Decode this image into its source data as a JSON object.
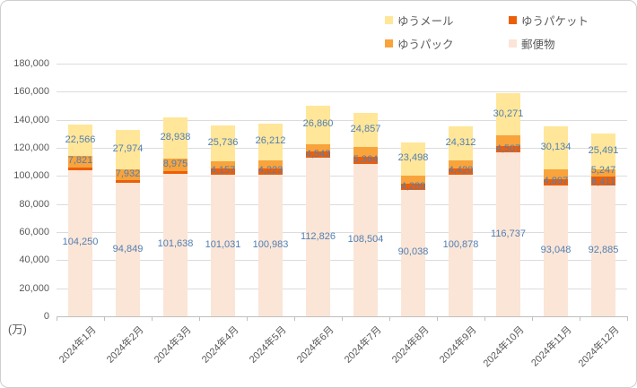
{
  "chart": {
    "unit_label": "(万)",
    "colors": {
      "yuu_mail": "#FFE699",
      "yuu_packet": "#EC5F0A",
      "yuu_pack": "#F8A33B",
      "yuubin": "#FBE5D6",
      "data_label_text": "#527FB3",
      "axis_text": "#595959",
      "gridline": "#DCDCDC",
      "axis_line": "#C0BFBF"
    },
    "legend": [
      {
        "label": "ゆうメール",
        "color_key": "yuu_mail"
      },
      {
        "label": "ゆうパケット",
        "color_key": "yuu_packet"
      },
      {
        "label": "ゆうパック",
        "color_key": "yuu_pack"
      },
      {
        "label": "郵便物",
        "color_key": "yuubin"
      }
    ],
    "chart_data": {
      "type": "bar",
      "stacked": true,
      "title": "",
      "xlabel": "",
      "ylabel": "(万)",
      "ylim": [
        0,
        180000
      ],
      "ytick_step": 20000,
      "grid": true,
      "legend_position": "top-right",
      "y_tick_labels": [
        "0",
        "20,000",
        "40,000",
        "60,000",
        "80,000",
        "100,000",
        "120,000",
        "140,000",
        "160,000",
        "180,000"
      ],
      "categories": [
        "2024年1月",
        "2024年2月",
        "2024年3月",
        "2024年4月",
        "2024年5月",
        "2024年6月",
        "2024年7月",
        "2024年8月",
        "2024年9月",
        "2024年10月",
        "2024年11月",
        "2024年12月"
      ],
      "note": "Series listed bottom-to-top of the stack. Values with labeled=false have no printed data label in the chart; those values are estimated from bar pixel heights against the gridlines.",
      "series": [
        {
          "name": "郵便物",
          "color_key": "yuubin",
          "values": [
            104250,
            94849,
            101638,
            101031,
            100983,
            112826,
            108504,
            90038,
            100878,
            116737,
            93048,
            92885
          ],
          "labeled": [
            true,
            true,
            true,
            true,
            true,
            true,
            true,
            true,
            true,
            true,
            true,
            true
          ]
        },
        {
          "name": "ゆうパケット",
          "color_key": "yuu_packet",
          "values": [
            2000,
            2000,
            2000,
            4157,
            4223,
            4543,
            5364,
            4289,
            4420,
            4507,
            4897,
            6411
          ],
          "labeled": [
            false,
            false,
            false,
            true,
            true,
            true,
            true,
            true,
            true,
            true,
            true,
            true
          ]
        },
        {
          "name": "ゆうパック",
          "color_key": "yuu_pack",
          "values": [
            7821,
            7932,
            8975,
            5000,
            6000,
            5500,
            6500,
            6000,
            5500,
            7500,
            7000,
            5247
          ],
          "labeled": [
            true,
            true,
            true,
            false,
            false,
            false,
            false,
            false,
            false,
            false,
            false,
            true
          ]
        },
        {
          "name": "ゆうメール",
          "color_key": "yuu_mail",
          "values": [
            22566,
            27974,
            28938,
            25736,
            26212,
            26860,
            24857,
            23498,
            24312,
            30271,
            30134,
            25491
          ],
          "labeled": [
            true,
            true,
            true,
            true,
            true,
            true,
            true,
            true,
            true,
            true,
            true,
            true
          ]
        }
      ]
    }
  }
}
